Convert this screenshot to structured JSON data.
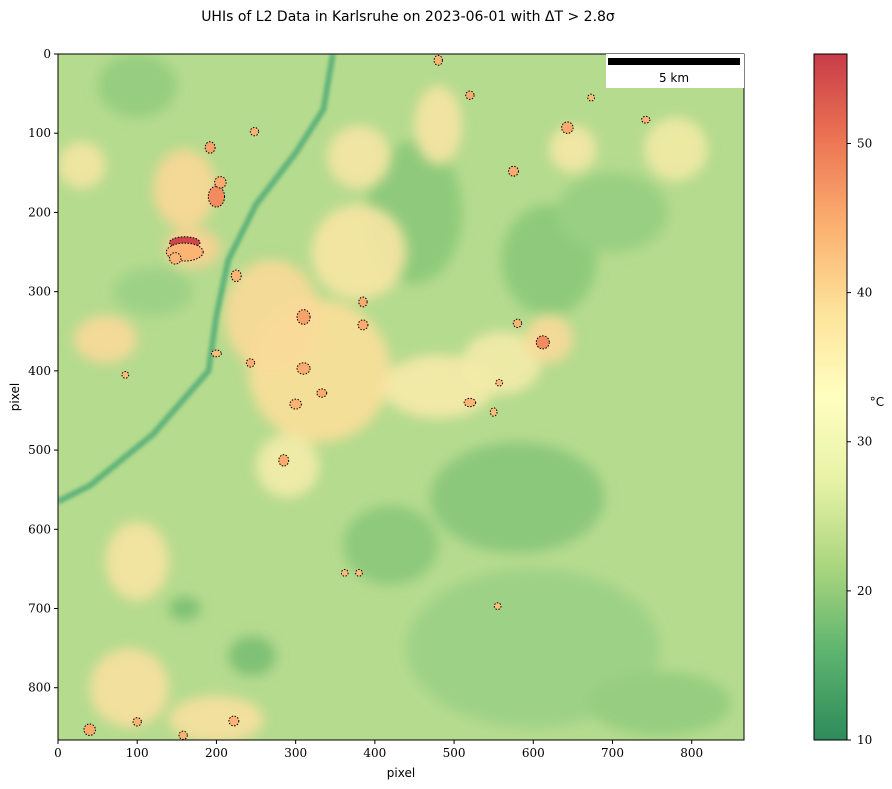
{
  "chart_data": {
    "type": "heatmap",
    "title": "UHIs of L2 Data in Karlsruhe on 2023-06-01 with ΔT > 2.8σ",
    "xlabel": "pixel",
    "ylabel": "pixel",
    "x_range": [
      0,
      866
    ],
    "y_range": [
      0,
      866
    ],
    "y_inverted": true,
    "x_ticks": [
      0,
      100,
      200,
      300,
      400,
      500,
      600,
      700,
      800
    ],
    "y_ticks": [
      0,
      100,
      200,
      300,
      400,
      500,
      600,
      700,
      800
    ],
    "colorbar": {
      "label": "°C",
      "range": [
        10,
        56
      ],
      "ticks": [
        10,
        20,
        30,
        40,
        50
      ],
      "colormap": [
        "#2e8b5a",
        "#5bb36e",
        "#a9d57f",
        "#e6f2a5",
        "#ffffc0",
        "#fde39a",
        "#fcb070",
        "#ec7553",
        "#c83c48"
      ]
    },
    "scalebar": {
      "label": "5 km"
    },
    "base_color": "#b5db8e",
    "river": {
      "color": "#62b47a",
      "points": [
        [
          347,
          0
        ],
        [
          335,
          70
        ],
        [
          300,
          125
        ],
        [
          250,
          190
        ],
        [
          215,
          260
        ],
        [
          200,
          330
        ],
        [
          190,
          400
        ],
        [
          120,
          480
        ],
        [
          40,
          545
        ],
        [
          0,
          565
        ]
      ]
    },
    "cool_zones": [
      {
        "x": 100,
        "y": 40,
        "rx": 50,
        "ry": 40,
        "color": "#96cd80"
      },
      {
        "x": 620,
        "y": 260,
        "rx": 60,
        "ry": 70,
        "color": "#8fca7c"
      },
      {
        "x": 700,
        "y": 200,
        "rx": 70,
        "ry": 50,
        "color": "#99cf82"
      },
      {
        "x": 580,
        "y": 560,
        "rx": 110,
        "ry": 70,
        "color": "#8cc87b"
      },
      {
        "x": 600,
        "y": 750,
        "rx": 160,
        "ry": 100,
        "color": "#9dd186"
      },
      {
        "x": 420,
        "y": 620,
        "rx": 60,
        "ry": 50,
        "color": "#8ec97c"
      },
      {
        "x": 245,
        "y": 760,
        "rx": 30,
        "ry": 25,
        "color": "#7fc174"
      },
      {
        "x": 160,
        "y": 700,
        "rx": 20,
        "ry": 15,
        "color": "#7fc174"
      },
      {
        "x": 760,
        "y": 820,
        "rx": 90,
        "ry": 40,
        "color": "#96cd80"
      },
      {
        "x": 450,
        "y": 200,
        "rx": 60,
        "ry": 90,
        "color": "#8fca7c"
      },
      {
        "x": 120,
        "y": 300,
        "rx": 50,
        "ry": 30,
        "color": "#9dd186"
      }
    ],
    "warm_zones": [
      {
        "x": 330,
        "y": 400,
        "rx": 90,
        "ry": 90,
        "color": "#fbdf9a"
      },
      {
        "x": 270,
        "y": 330,
        "rx": 60,
        "ry": 70,
        "color": "#fbd998"
      },
      {
        "x": 380,
        "y": 250,
        "rx": 60,
        "ry": 60,
        "color": "#f8e6a4"
      },
      {
        "x": 480,
        "y": 420,
        "rx": 70,
        "ry": 40,
        "color": "#f7eaa8"
      },
      {
        "x": 160,
        "y": 170,
        "rx": 40,
        "ry": 50,
        "color": "#fbd796"
      },
      {
        "x": 170,
        "y": 245,
        "rx": 35,
        "ry": 25,
        "color": "#fcd194"
      },
      {
        "x": 60,
        "y": 360,
        "rx": 40,
        "ry": 30,
        "color": "#fad99a"
      },
      {
        "x": 560,
        "y": 390,
        "rx": 50,
        "ry": 40,
        "color": "#f3eba8"
      },
      {
        "x": 620,
        "y": 360,
        "rx": 30,
        "ry": 30,
        "color": "#fad99a"
      },
      {
        "x": 480,
        "y": 90,
        "rx": 30,
        "ry": 50,
        "color": "#f7e4a4"
      },
      {
        "x": 380,
        "y": 130,
        "rx": 40,
        "ry": 40,
        "color": "#f6e6a4"
      },
      {
        "x": 100,
        "y": 640,
        "rx": 40,
        "ry": 50,
        "color": "#f7e3a2"
      },
      {
        "x": 90,
        "y": 800,
        "rx": 50,
        "ry": 50,
        "color": "#f8e0a0"
      },
      {
        "x": 200,
        "y": 840,
        "rx": 60,
        "ry": 30,
        "color": "#f8e0a0"
      },
      {
        "x": 290,
        "y": 520,
        "rx": 40,
        "ry": 40,
        "color": "#f3eca8"
      },
      {
        "x": 30,
        "y": 140,
        "rx": 30,
        "ry": 30,
        "color": "#f4e6a3"
      },
      {
        "x": 780,
        "y": 120,
        "rx": 40,
        "ry": 40,
        "color": "#f2eaa5"
      },
      {
        "x": 650,
        "y": 120,
        "rx": 30,
        "ry": 30,
        "color": "#f5e8a5"
      }
    ],
    "hotspots": [
      {
        "x": 160,
        "y": 238,
        "rx": 18,
        "ry": 6,
        "value": 55
      },
      {
        "x": 160,
        "y": 250,
        "rx": 22,
        "ry": 10,
        "value": 44
      },
      {
        "x": 200,
        "y": 180,
        "rx": 9,
        "ry": 12,
        "value": 48
      },
      {
        "x": 205,
        "y": 162,
        "rx": 6,
        "ry": 6,
        "value": 45
      },
      {
        "x": 192,
        "y": 118,
        "rx": 5,
        "ry": 6,
        "value": 46
      },
      {
        "x": 148,
        "y": 258,
        "rx": 6,
        "ry": 6,
        "value": 44
      },
      {
        "x": 225,
        "y": 280,
        "rx": 5,
        "ry": 6,
        "value": 44
      },
      {
        "x": 310,
        "y": 332,
        "rx": 7,
        "ry": 8,
        "value": 46
      },
      {
        "x": 385,
        "y": 313,
        "rx": 4,
        "ry": 5,
        "value": 45
      },
      {
        "x": 385,
        "y": 342,
        "rx": 5,
        "ry": 5,
        "value": 45
      },
      {
        "x": 310,
        "y": 397,
        "rx": 7,
        "ry": 6,
        "value": 45
      },
      {
        "x": 333,
        "y": 428,
        "rx": 5,
        "ry": 4,
        "value": 45
      },
      {
        "x": 300,
        "y": 442,
        "rx": 6,
        "ry": 5,
        "value": 44
      },
      {
        "x": 285,
        "y": 513,
        "rx": 5,
        "ry": 6,
        "value": 45
      },
      {
        "x": 243,
        "y": 390,
        "rx": 4,
        "ry": 4,
        "value": 45
      },
      {
        "x": 200,
        "y": 378,
        "rx": 5,
        "ry": 3,
        "value": 43
      },
      {
        "x": 248,
        "y": 98,
        "rx": 4,
        "ry": 4,
        "value": 44
      },
      {
        "x": 520,
        "y": 52,
        "rx": 4,
        "ry": 4,
        "value": 45
      },
      {
        "x": 575,
        "y": 148,
        "rx": 5,
        "ry": 5,
        "value": 45
      },
      {
        "x": 643,
        "y": 93,
        "rx": 6,
        "ry": 6,
        "value": 45
      },
      {
        "x": 612,
        "y": 364,
        "rx": 7,
        "ry": 7,
        "value": 48
      },
      {
        "x": 580,
        "y": 340,
        "rx": 4,
        "ry": 4,
        "value": 44
      },
      {
        "x": 520,
        "y": 440,
        "rx": 6,
        "ry": 4,
        "value": 44
      },
      {
        "x": 550,
        "y": 452,
        "rx": 3,
        "ry": 4,
        "value": 43
      },
      {
        "x": 557,
        "y": 415,
        "rx": 3,
        "ry": 3,
        "value": 43
      },
      {
        "x": 480,
        "y": 8,
        "rx": 4,
        "ry": 5,
        "value": 44
      },
      {
        "x": 742,
        "y": 83,
        "rx": 4,
        "ry": 3,
        "value": 44
      },
      {
        "x": 673,
        "y": 55,
        "rx": 3,
        "ry": 3,
        "value": 43
      },
      {
        "x": 40,
        "y": 853,
        "rx": 6,
        "ry": 6,
        "value": 45
      },
      {
        "x": 100,
        "y": 843,
        "rx": 4,
        "ry": 4,
        "value": 44
      },
      {
        "x": 158,
        "y": 860,
        "rx": 4,
        "ry": 4,
        "value": 44
      },
      {
        "x": 222,
        "y": 842,
        "rx": 5,
        "ry": 5,
        "value": 44
      },
      {
        "x": 85,
        "y": 405,
        "rx": 3,
        "ry": 3,
        "value": 43
      },
      {
        "x": 362,
        "y": 655,
        "rx": 3,
        "ry": 3,
        "value": 43
      },
      {
        "x": 380,
        "y": 655,
        "rx": 3,
        "ry": 3,
        "value": 43
      },
      {
        "x": 555,
        "y": 697,
        "rx": 3,
        "ry": 3,
        "value": 43
      }
    ]
  }
}
